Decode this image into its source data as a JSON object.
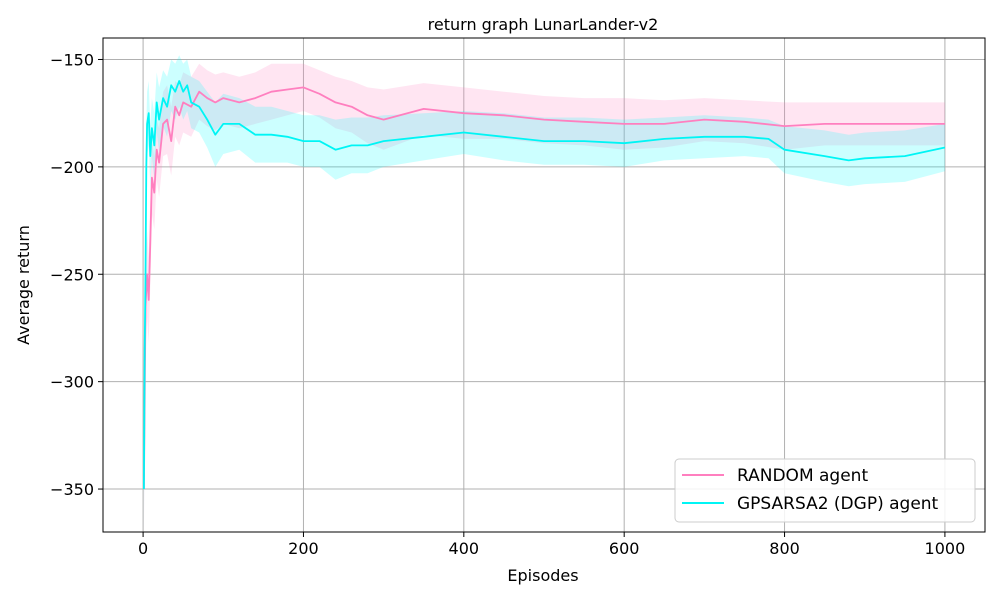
{
  "chart_data": {
    "type": "line",
    "title": "return graph LunarLander-v2",
    "xlabel": "Episodes",
    "ylabel": "Average return",
    "xlim": [
      -50,
      1050
    ],
    "ylim": [
      -370,
      -140
    ],
    "x_ticks": [
      0,
      200,
      400,
      600,
      800,
      1000
    ],
    "y_ticks": [
      -150,
      -200,
      -250,
      -300,
      -350
    ],
    "grid": true,
    "legend_position": "lower-right",
    "series": [
      {
        "name": "RANDOM agent",
        "color": "#ff7fbf",
        "band_color": "#ff7fbf",
        "x": [
          1,
          3,
          5,
          7,
          9,
          11,
          14,
          17,
          20,
          25,
          30,
          35,
          40,
          45,
          50,
          60,
          70,
          80,
          90,
          100,
          120,
          140,
          160,
          180,
          200,
          220,
          240,
          260,
          280,
          300,
          350,
          400,
          450,
          500,
          550,
          600,
          650,
          700,
          750,
          800,
          850,
          900,
          950,
          1000
        ],
        "mean": [
          -350,
          -265,
          -250,
          -262,
          -235,
          -205,
          -212,
          -192,
          -198,
          -180,
          -178,
          -188,
          -172,
          -176,
          -170,
          -172,
          -165,
          -168,
          -170,
          -168,
          -170,
          -168,
          -165,
          -164,
          -163,
          -166,
          -170,
          -172,
          -176,
          -178,
          -173,
          -175,
          -176,
          -178,
          -179,
          -180,
          -180,
          -178,
          -179,
          -181,
          -180,
          -180,
          -180,
          -180
        ],
        "upper": [
          -330,
          -245,
          -230,
          -242,
          -215,
          -188,
          -195,
          -178,
          -182,
          -165,
          -162,
          -172,
          -160,
          -162,
          -156,
          -158,
          -152,
          -155,
          -157,
          -156,
          -158,
          -156,
          -152,
          -152,
          -152,
          -155,
          -158,
          -160,
          -163,
          -164,
          -161,
          -163,
          -165,
          -167,
          -168,
          -168,
          -169,
          -168,
          -169,
          -170,
          -170,
          -170,
          -170,
          -170
        ],
        "lower": [
          -370,
          -285,
          -270,
          -282,
          -255,
          -222,
          -229,
          -206,
          -214,
          -195,
          -194,
          -204,
          -186,
          -190,
          -184,
          -186,
          -178,
          -181,
          -183,
          -180,
          -182,
          -180,
          -178,
          -176,
          -174,
          -177,
          -182,
          -184,
          -189,
          -192,
          -185,
          -187,
          -187,
          -189,
          -190,
          -192,
          -191,
          -188,
          -189,
          -192,
          -190,
          -190,
          -190,
          -190
        ]
      },
      {
        "name": "GPSARSA2 (DGP) agent",
        "color": "#00f5f5",
        "band_color": "#00ffff",
        "x": [
          1,
          2,
          3,
          4,
          5,
          7,
          9,
          11,
          14,
          17,
          20,
          25,
          30,
          35,
          40,
          45,
          50,
          55,
          60,
          70,
          80,
          90,
          100,
          120,
          140,
          160,
          180,
          200,
          220,
          240,
          260,
          280,
          300,
          350,
          400,
          450,
          500,
          550,
          600,
          650,
          700,
          750,
          780,
          800,
          850,
          880,
          900,
          950,
          1000
        ],
        "mean": [
          -350,
          -285,
          -250,
          -200,
          -180,
          -175,
          -195,
          -182,
          -190,
          -170,
          -178,
          -168,
          -172,
          -162,
          -165,
          -160,
          -165,
          -162,
          -170,
          -172,
          -178,
          -185,
          -180,
          -180,
          -185,
          -185,
          -186,
          -188,
          -188,
          -192,
          -190,
          -190,
          -188,
          -186,
          -184,
          -186,
          -188,
          -188,
          -189,
          -187,
          -186,
          -186,
          -187,
          -192,
          -195,
          -197,
          -196,
          -195,
          -191
        ],
        "upper": [
          -330,
          -265,
          -225,
          -180,
          -165,
          -160,
          -180,
          -168,
          -175,
          -156,
          -163,
          -155,
          -158,
          -150,
          -152,
          -148,
          -152,
          -150,
          -158,
          -160,
          -165,
          -170,
          -166,
          -168,
          -172,
          -172,
          -174,
          -176,
          -176,
          -178,
          -177,
          -177,
          -176,
          -175,
          -174,
          -175,
          -177,
          -177,
          -178,
          -177,
          -176,
          -177,
          -178,
          -181,
          -183,
          -185,
          -184,
          -183,
          -180
        ],
        "lower": [
          -370,
          -305,
          -275,
          -220,
          -195,
          -190,
          -210,
          -196,
          -205,
          -184,
          -193,
          -181,
          -186,
          -174,
          -178,
          -172,
          -178,
          -174,
          -182,
          -184,
          -191,
          -200,
          -194,
          -192,
          -198,
          -198,
          -198,
          -200,
          -200,
          -206,
          -203,
          -203,
          -200,
          -197,
          -194,
          -197,
          -199,
          -199,
          -200,
          -197,
          -196,
          -195,
          -196,
          -203,
          -207,
          -209,
          -208,
          -207,
          -202
        ]
      }
    ]
  }
}
